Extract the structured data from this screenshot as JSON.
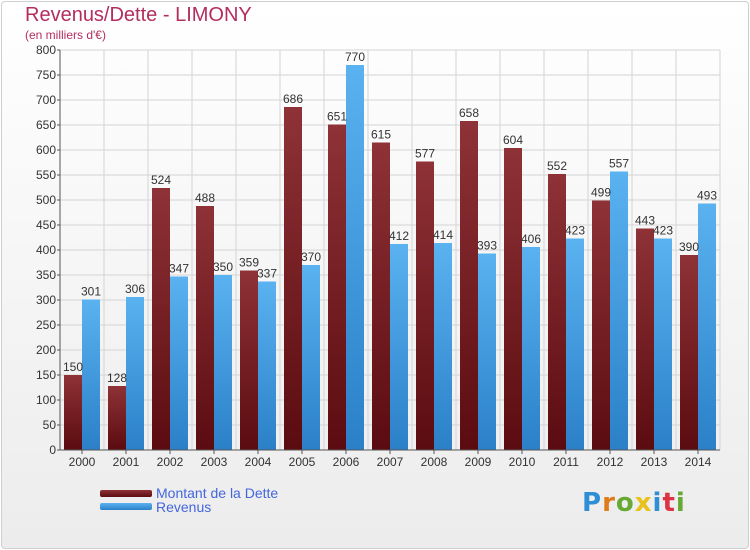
{
  "chart_data": {
    "type": "bar",
    "title": "Revenus/Dette - LIMONY",
    "subtitle": "(en milliers d'€)",
    "categories": [
      "2000",
      "2001",
      "2002",
      "2003",
      "2004",
      "2005",
      "2006",
      "2007",
      "2008",
      "2009",
      "2010",
      "2011",
      "2012",
      "2013",
      "2014"
    ],
    "series": [
      {
        "name": "Montant de la Dette",
        "color": "#7a1a1f",
        "values": [
          150,
          128,
          524,
          488,
          359,
          686,
          651,
          615,
          577,
          658,
          604,
          552,
          499,
          443,
          390
        ]
      },
      {
        "name": "Revenus",
        "color": "#4aa3e8",
        "values": [
          301,
          306,
          347,
          350,
          337,
          370,
          770,
          412,
          414,
          393,
          406,
          423,
          557,
          423,
          493
        ]
      }
    ],
    "ylim": [
      0,
      800
    ],
    "yticks": [
      0,
      50,
      100,
      150,
      200,
      250,
      300,
      350,
      400,
      450,
      500,
      550,
      600,
      650,
      700,
      750,
      800
    ],
    "grid": true,
    "legend": "bottom-left"
  },
  "logo": {
    "letters": [
      "P",
      "r",
      "o",
      "x",
      "i",
      "t",
      "i"
    ]
  }
}
